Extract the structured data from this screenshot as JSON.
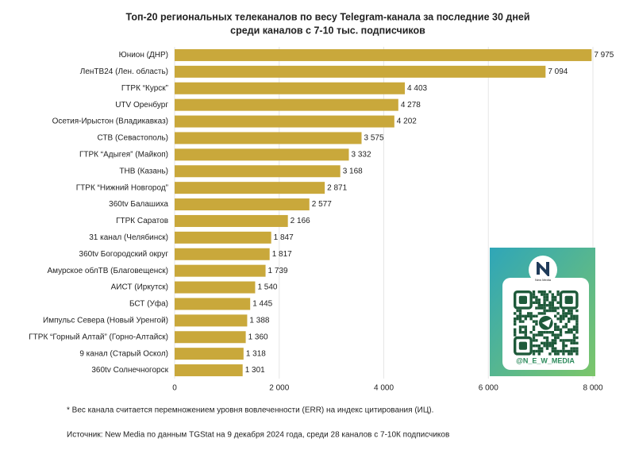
{
  "chart_data": {
    "type": "hbar",
    "title": [
      "Топ-20 региональных телеканалов по весу Telegram-канала за последние 30 дней",
      "среди каналов с 7-10 тыс. подписчиков"
    ],
    "categories": [
      "Юнион (ДНР)",
      "ЛенТВ24 (Лен. область)",
      "ГТРК “Курск”",
      "UTV Оренбург",
      "Осетия-Ирыстон (Владикавказ)",
      "СТВ (Севастополь)",
      "ГТРК “Адыгея” (Майкоп)",
      "ТНВ (Казань)",
      "ГТРК “Нижний Новгород”",
      "360tv Балашиха",
      "ГТРК Саратов",
      "31 канал (Челябинск)",
      "360tv Богородский округ",
      "Амурское облТВ (Благовещенск)",
      "АИСТ (Иркутск)",
      "БСТ (Уфа)",
      "Импульс Севера (Новый Уренгой)",
      "ГТРК “Горный Алтай” (Горно-Алтайск)",
      "9 канал (Старый Оскол)",
      "360tv Солнечногорск"
    ],
    "values": [
      7975,
      7094,
      4403,
      4278,
      4202,
      3575,
      3332,
      3168,
      2871,
      2577,
      2166,
      1847,
      1817,
      1739,
      1540,
      1445,
      1388,
      1360,
      1318,
      1301
    ],
    "value_labels": [
      "7 975",
      "7 094",
      "4 403",
      "4 278",
      "4 202",
      "3 575",
      "3 332",
      "3 168",
      "2 871",
      "2 577",
      "2 166",
      "1 847",
      "1 817",
      "1 739",
      "1 540",
      "1 445",
      "1 388",
      "1 360",
      "1 318",
      "1 301"
    ],
    "color": "#c9a83b",
    "xlim": [
      0,
      8000
    ],
    "xticks": [
      0,
      {
        "value": 2000,
        "label": "2 000"
      },
      {
        "value": 4000,
        "label": "4 000"
      },
      {
        "value": 6000,
        "label": "6 000"
      },
      {
        "value": 8000,
        "label": "8 000"
      }
    ],
    "grid": true,
    "footnote": "* Вес канала считается перемножением уровня вовлеченности (ERR) на индекс цитирования (ИЦ).",
    "source": "Источник: New Media по данным TGStat на 9 декабря 2024 года, среди 28 каналов с 7-10К подписчиков",
    "qr_logo": "New Media",
    "qr_handle": "@N_E_W_MEDIA"
  }
}
